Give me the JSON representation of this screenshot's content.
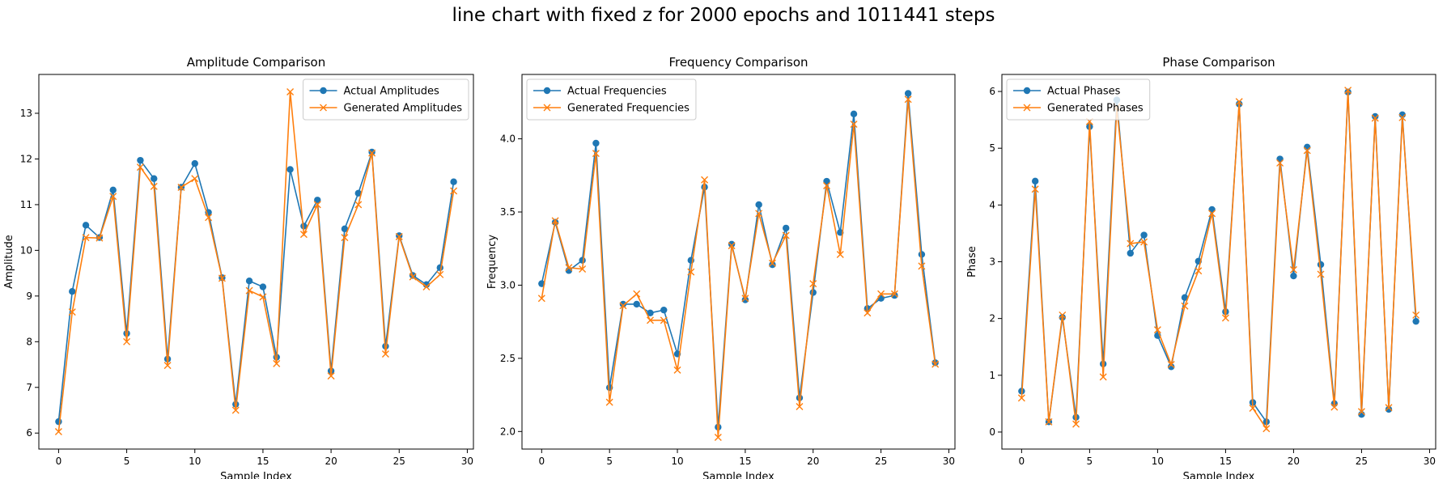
{
  "suptitle": "line chart with fixed z for 2000 epochs and 1011441 steps",
  "colors": {
    "actual": "#1f77b4",
    "generated": "#ff7f0e"
  },
  "chart_data": [
    {
      "type": "line",
      "title": "Amplitude Comparison",
      "xlabel": "Sample Index",
      "ylabel": "Amplitude",
      "xlim": [
        -1.45,
        30.45
      ],
      "ylim": [
        5.65,
        13.85
      ],
      "xticks": [
        0,
        5,
        10,
        15,
        20,
        25,
        30
      ],
      "yticks": [
        6,
        7,
        8,
        9,
        10,
        11,
        12,
        13
      ],
      "legend": "top-right",
      "x": [
        0,
        1,
        2,
        3,
        4,
        5,
        6,
        7,
        8,
        9,
        10,
        11,
        12,
        13,
        14,
        15,
        16,
        17,
        18,
        19,
        20,
        21,
        22,
        23,
        24,
        25,
        26,
        27,
        28,
        29
      ],
      "series": [
        {
          "name": "Actual Amplitudes",
          "marker": "o",
          "values": [
            6.25,
            9.1,
            10.55,
            10.28,
            11.32,
            8.18,
            11.97,
            11.57,
            7.62,
            11.38,
            11.9,
            10.83,
            9.4,
            6.63,
            9.33,
            9.2,
            7.66,
            11.77,
            10.53,
            11.1,
            7.36,
            10.47,
            11.25,
            12.15,
            7.9,
            10.32,
            9.45,
            9.25,
            9.62,
            11.5
          ]
        },
        {
          "name": "Generated Amplitudes",
          "marker": "x",
          "values": [
            6.03,
            8.65,
            10.28,
            10.27,
            11.18,
            8.0,
            11.82,
            11.4,
            7.48,
            11.38,
            11.57,
            10.72,
            9.39,
            6.5,
            9.12,
            8.98,
            7.52,
            13.47,
            10.35,
            11.0,
            7.25,
            10.28,
            11.0,
            12.13,
            7.73,
            10.3,
            9.42,
            9.2,
            9.47,
            11.3
          ]
        }
      ]
    },
    {
      "type": "line",
      "title": "Frequency Comparison",
      "xlabel": "Sample Index",
      "ylabel": "Frequency",
      "xlim": [
        -1.45,
        30.45
      ],
      "ylim": [
        1.88,
        4.44
      ],
      "xticks": [
        0,
        5,
        10,
        15,
        20,
        25,
        30
      ],
      "yticks": [
        2.0,
        2.5,
        3.0,
        3.5,
        4.0
      ],
      "ytick_labels": [
        "2.0",
        "2.5",
        "3.0",
        "3.5",
        "4.0"
      ],
      "legend": "top-left",
      "x": [
        0,
        1,
        2,
        3,
        4,
        5,
        6,
        7,
        8,
        9,
        10,
        11,
        12,
        13,
        14,
        15,
        16,
        17,
        18,
        19,
        20,
        21,
        22,
        23,
        24,
        25,
        26,
        27,
        28,
        29
      ],
      "series": [
        {
          "name": "Actual Frequencies",
          "marker": "o",
          "values": [
            3.01,
            3.43,
            3.1,
            3.17,
            3.97,
            2.3,
            2.87,
            2.87,
            2.81,
            2.83,
            2.53,
            3.17,
            3.67,
            2.03,
            3.28,
            2.9,
            3.55,
            3.14,
            3.39,
            2.23,
            2.95,
            3.71,
            3.36,
            4.17,
            2.84,
            2.91,
            2.93,
            4.31,
            3.21,
            2.47
          ]
        },
        {
          "name": "Generated Frequencies",
          "marker": "x",
          "values": [
            2.91,
            3.44,
            3.12,
            3.11,
            3.9,
            2.2,
            2.86,
            2.94,
            2.76,
            2.76,
            2.42,
            3.09,
            3.72,
            1.96,
            3.27,
            2.91,
            3.49,
            3.15,
            3.34,
            2.17,
            3.01,
            3.68,
            3.21,
            4.1,
            2.81,
            2.94,
            2.94,
            4.27,
            3.13,
            2.46
          ]
        }
      ]
    },
    {
      "type": "line",
      "title": "Phase Comparison",
      "xlabel": "Sample Index",
      "ylabel": "Phase",
      "xlim": [
        -1.45,
        30.45
      ],
      "ylim": [
        -0.3,
        6.3
      ],
      "xticks": [
        0,
        5,
        10,
        15,
        20,
        25,
        30
      ],
      "yticks": [
        0,
        1,
        2,
        3,
        4,
        5,
        6
      ],
      "legend": "top-left",
      "x": [
        0,
        1,
        2,
        3,
        4,
        5,
        6,
        7,
        8,
        9,
        10,
        11,
        12,
        13,
        14,
        15,
        16,
        17,
        18,
        19,
        20,
        21,
        22,
        23,
        24,
        25,
        26,
        27,
        28,
        29
      ],
      "series": [
        {
          "name": "Actual Phases",
          "marker": "o",
          "values": [
            0.72,
            4.42,
            0.18,
            2.02,
            0.26,
            5.38,
            1.2,
            5.85,
            3.15,
            3.47,
            1.7,
            1.15,
            2.37,
            3.01,
            3.92,
            2.12,
            5.78,
            0.52,
            0.18,
            4.81,
            2.75,
            5.02,
            2.95,
            0.5,
            5.99,
            0.31,
            5.56,
            0.4,
            5.59,
            1.95
          ]
        },
        {
          "name": "Generated Phases",
          "marker": "x",
          "values": [
            0.6,
            4.28,
            0.18,
            2.06,
            0.14,
            5.47,
            0.97,
            5.72,
            3.32,
            3.35,
            1.8,
            1.19,
            2.22,
            2.84,
            3.85,
            2.01,
            5.82,
            0.42,
            0.06,
            4.74,
            2.86,
            4.96,
            2.78,
            0.44,
            6.02,
            0.36,
            5.53,
            0.43,
            5.54,
            2.06
          ]
        }
      ]
    }
  ]
}
